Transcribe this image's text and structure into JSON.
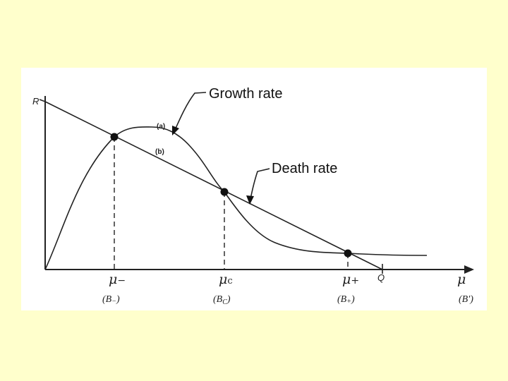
{
  "callouts": {
    "growth": "Growth rate",
    "death": "Death rate"
  },
  "axes": {
    "y_label": "R",
    "x_label": "μ",
    "x_end_label": "Q",
    "x_alt_label": "(B′)"
  },
  "curves": {
    "a_label": "(a)",
    "b_label": "(b)"
  },
  "points": [
    {
      "mu": "μ",
      "sub": "−",
      "b": "(B",
      "bsub": "−",
      "bclose": ")"
    },
    {
      "mu": "μ",
      "sub": "c",
      "b": "(B",
      "bsub": "C",
      "bclose": ")"
    },
    {
      "mu": "μ",
      "sub": "+",
      "b": "(B",
      "bsub": "+",
      "bclose": ")"
    }
  ]
}
